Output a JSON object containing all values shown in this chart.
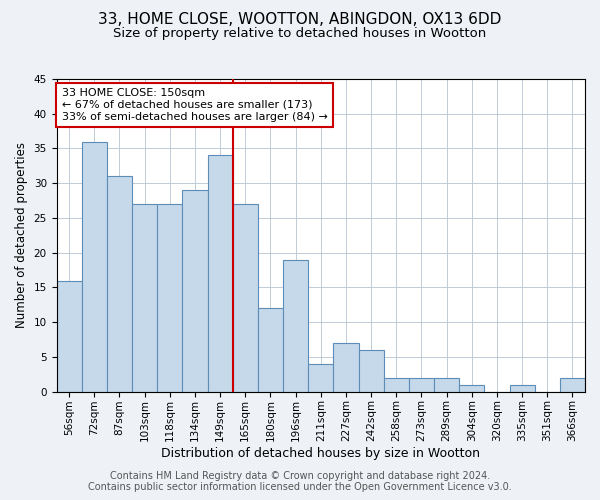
{
  "title1": "33, HOME CLOSE, WOOTTON, ABINGDON, OX13 6DD",
  "title2": "Size of property relative to detached houses in Wootton",
  "xlabel": "Distribution of detached houses by size in Wootton",
  "ylabel": "Number of detached properties",
  "categories": [
    "56sqm",
    "72sqm",
    "87sqm",
    "103sqm",
    "118sqm",
    "134sqm",
    "149sqm",
    "165sqm",
    "180sqm",
    "196sqm",
    "211sqm",
    "227sqm",
    "242sqm",
    "258sqm",
    "273sqm",
    "289sqm",
    "304sqm",
    "320sqm",
    "335sqm",
    "351sqm",
    "366sqm"
  ],
  "values": [
    16,
    36,
    31,
    27,
    27,
    29,
    34,
    27,
    12,
    19,
    4,
    7,
    6,
    2,
    2,
    2,
    1,
    0,
    1,
    0,
    2
  ],
  "bar_color": "#c6d9ea",
  "bar_edge_color": "#5b8db8",
  "vline_color": "#cc0000",
  "annotation_text": "33 HOME CLOSE: 150sqm\n← 67% of detached houses are smaller (173)\n33% of semi-detached houses are larger (84) →",
  "annotation_box_color": "#ffffff",
  "annotation_box_edge": "#cc0000",
  "ylim": [
    0,
    45
  ],
  "yticks": [
    0,
    5,
    10,
    15,
    20,
    25,
    30,
    35,
    40,
    45
  ],
  "footer1": "Contains HM Land Registry data © Crown copyright and database right 2024.",
  "footer2": "Contains public sector information licensed under the Open Government Licence v3.0.",
  "bg_color": "#eef2f7",
  "plot_bg_color": "#ffffff",
  "grid_color": "#c0ccd8",
  "title1_fontsize": 11,
  "title2_fontsize": 9.5,
  "xlabel_fontsize": 9,
  "ylabel_fontsize": 8.5,
  "tick_fontsize": 7.5,
  "footer_fontsize": 7,
  "annotation_fontsize": 8
}
